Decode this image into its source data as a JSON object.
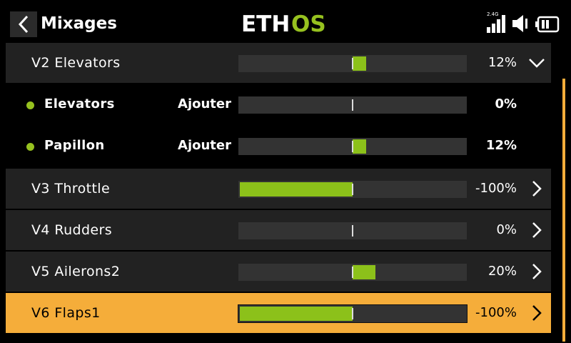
{
  "header": {
    "title": "Mixages",
    "logo_left": "ETH",
    "logo_right": "OS",
    "radio_band": "2.4G"
  },
  "colors": {
    "accent": "#f5ad3a",
    "bar_fill": "#8cc11a",
    "logo_green": "#96c11f"
  },
  "rows": [
    {
      "type": "mix",
      "name": "V2 Elevators",
      "value": "12%",
      "bar": 0.12,
      "icon": "chevron-down-icon",
      "selected": false
    },
    {
      "type": "sub",
      "name": "Elevators",
      "operation": "Ajouter",
      "value": "0%",
      "bar": 0.0
    },
    {
      "type": "sub",
      "name": "Papillon",
      "operation": "Ajouter",
      "value": "12%",
      "bar": 0.12
    },
    {
      "type": "mix",
      "name": "V3 Throttle",
      "value": "-100%",
      "bar": -1.0,
      "icon": "chevron-right-icon",
      "selected": false
    },
    {
      "type": "mix",
      "name": "V4 Rudders",
      "value": "0%",
      "bar": 0.0,
      "icon": "chevron-right-icon",
      "selected": false
    },
    {
      "type": "mix",
      "name": "V5 Ailerons2",
      "value": "20%",
      "bar": 0.2,
      "icon": "chevron-right-icon",
      "selected": false
    },
    {
      "type": "mix",
      "name": "V6 Flaps1",
      "value": "-100%",
      "bar": -1.0,
      "icon": "chevron-right-icon",
      "selected": true
    }
  ]
}
